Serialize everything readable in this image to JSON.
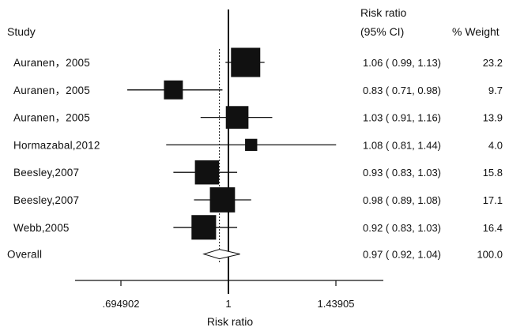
{
  "chart_data": {
    "type": "forest",
    "title": "",
    "headers": {
      "study": "Study",
      "rr_line1": "Risk ratio",
      "rr_line2": "(95% CI)",
      "weight": "% Weight"
    },
    "xlabel": "Risk ratio",
    "x_scale": "log",
    "xlim": [
      0.62,
      1.5
    ],
    "reference_line": 1,
    "overall_line": 0.97,
    "ticks": [
      {
        "value": 0.694902,
        "label": ".694902"
      },
      {
        "value": 1,
        "label": "1"
      },
      {
        "value": 1.43905,
        "label": "1.43905"
      }
    ],
    "studies": [
      {
        "label": "Auranen，2005",
        "rr": 1.06,
        "lo": 0.99,
        "hi": 1.13,
        "ci_text": "1.06 ( 0.99, 1.13)",
        "weight": 23.2,
        "weight_text": "23.2"
      },
      {
        "label": "Auranen，2005",
        "rr": 0.83,
        "lo": 0.71,
        "hi": 0.98,
        "ci_text": "0.83 ( 0.71, 0.98)",
        "weight": 9.7,
        "weight_text": "9.7"
      },
      {
        "label": "Auranen，2005",
        "rr": 1.03,
        "lo": 0.91,
        "hi": 1.16,
        "ci_text": "1.03 ( 0.91, 1.16)",
        "weight": 13.9,
        "weight_text": "13.9"
      },
      {
        "label": "Hormazabal,2012",
        "rr": 1.08,
        "lo": 0.81,
        "hi": 1.44,
        "ci_text": "1.08 ( 0.81, 1.44)",
        "weight": 4.0,
        "weight_text": "4.0"
      },
      {
        "label": "Beesley,2007",
        "rr": 0.93,
        "lo": 0.83,
        "hi": 1.03,
        "ci_text": "0.93 ( 0.83, 1.03)",
        "weight": 15.8,
        "weight_text": "15.8"
      },
      {
        "label": "Beesley,2007",
        "rr": 0.98,
        "lo": 0.89,
        "hi": 1.08,
        "ci_text": "0.98 ( 0.89, 1.08)",
        "weight": 17.1,
        "weight_text": "17.1"
      },
      {
        "label": "Webb,2005",
        "rr": 0.92,
        "lo": 0.83,
        "hi": 1.03,
        "ci_text": "0.92 ( 0.83, 1.03)",
        "weight": 16.4,
        "weight_text": "16.4"
      }
    ],
    "overall": {
      "label": "Overall",
      "rr": 0.97,
      "lo": 0.92,
      "hi": 1.04,
      "ci_text": "0.97 ( 0.92, 1.04)",
      "weight": 100.0,
      "weight_text": "100.0"
    },
    "colors": {
      "marker": "#111111",
      "line": "#111111",
      "diamond_fill": "#ffffff"
    }
  }
}
